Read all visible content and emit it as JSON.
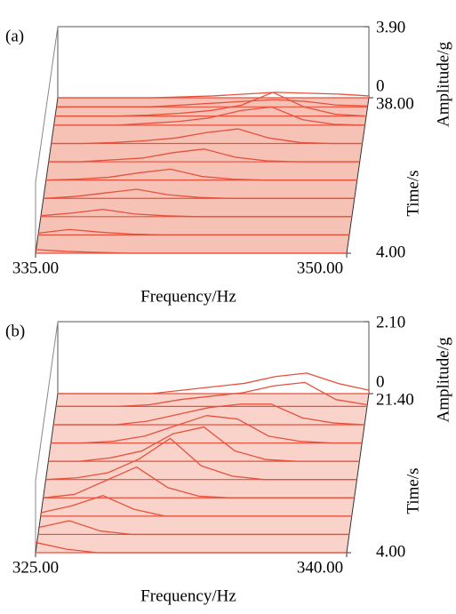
{
  "chart_data": [
    {
      "type": "waterfall",
      "panel_label": "(a)",
      "xlabel": "Frequency/Hz",
      "ylabel": "Time/s",
      "zlabel": "Amplitude/g",
      "color": "#e8503c",
      "floor_color": "#f6c2b6",
      "xlim": [
        335,
        350
      ],
      "xticks": [
        {
          "value": 335,
          "label": "335.00"
        },
        {
          "value": 350,
          "label": "350.00"
        }
      ],
      "ylim": [
        4,
        38
      ],
      "yticks": [
        {
          "value": 4,
          "label": "4.00"
        },
        {
          "value": 38,
          "label": "38.00"
        }
      ],
      "zlim": [
        0,
        3.9
      ],
      "zticks": [
        0,
        {
          "value": 3.9,
          "label": "3.90"
        }
      ],
      "x": [
        335,
        336.5,
        338,
        339.5,
        341,
        342.5,
        344,
        345.5,
        347,
        348.5,
        350
      ],
      "slices": [
        {
          "time": 38,
          "values": [
            0,
            0,
            0,
            0,
            0.05,
            0.1,
            0.2,
            0.3,
            0.25,
            0.2,
            0.1
          ]
        },
        {
          "time": 36,
          "values": [
            0,
            0,
            0,
            0,
            0.1,
            0.2,
            0.3,
            0.4,
            0.3,
            0.1,
            0.05
          ]
        },
        {
          "time": 34,
          "values": [
            0,
            0,
            0,
            0.05,
            0.15,
            0.3,
            0.6,
            1.3,
            0.5,
            0.1,
            0
          ]
        },
        {
          "time": 32,
          "values": [
            0,
            0,
            0,
            0.1,
            0.2,
            0.4,
            0.8,
            1.0,
            0.3,
            0.05,
            0
          ]
        },
        {
          "time": 28,
          "values": [
            0,
            0,
            0.05,
            0.15,
            0.3,
            0.6,
            0.8,
            0.3,
            0.05,
            0,
            0
          ]
        },
        {
          "time": 24,
          "values": [
            0,
            0,
            0.1,
            0.2,
            0.5,
            0.7,
            0.25,
            0.05,
            0,
            0,
            0
          ]
        },
        {
          "time": 20,
          "values": [
            0,
            0.05,
            0.15,
            0.4,
            0.6,
            0.2,
            0.05,
            0,
            0,
            0,
            0
          ]
        },
        {
          "time": 16,
          "values": [
            0,
            0.1,
            0.3,
            0.5,
            0.2,
            0.05,
            0,
            0,
            0,
            0,
            0
          ]
        },
        {
          "time": 12,
          "values": [
            0.05,
            0.2,
            0.4,
            0.15,
            0.05,
            0,
            0,
            0,
            0,
            0,
            0
          ]
        },
        {
          "time": 8,
          "values": [
            0.1,
            0.3,
            0.15,
            0.05,
            0,
            0,
            0,
            0,
            0,
            0,
            0
          ]
        },
        {
          "time": 4,
          "values": [
            0.2,
            0.1,
            0.05,
            0,
            0,
            0,
            0,
            0,
            0,
            0,
            0
          ]
        }
      ]
    },
    {
      "type": "waterfall",
      "panel_label": "(b)",
      "xlabel": "Frequency/Hz",
      "ylabel": "Time/s",
      "zlabel": "Amplitude/g",
      "color": "#e8503c",
      "floor_color": "#f9d3ca",
      "xlim": [
        325,
        340
      ],
      "xticks": [
        {
          "value": 325,
          "label": "325.00"
        },
        {
          "value": 340,
          "label": "340.00"
        }
      ],
      "ylim": [
        4,
        21.4
      ],
      "yticks": [
        {
          "value": 4,
          "label": "4.00"
        },
        {
          "value": 21.4,
          "label": "21.40"
        }
      ],
      "zlim": [
        0,
        2.1
      ],
      "zticks": [
        0,
        {
          "value": 2.1,
          "label": "2.10"
        }
      ],
      "x": [
        325,
        326.5,
        328,
        329.5,
        331,
        332.5,
        334,
        335.5,
        337,
        338.5,
        340
      ],
      "slices": [
        {
          "time": 21.4,
          "values": [
            0,
            0,
            0,
            0,
            0.1,
            0.2,
            0.3,
            0.5,
            0.6,
            0.3,
            0.1
          ]
        },
        {
          "time": 20,
          "values": [
            0,
            0,
            0,
            0.05,
            0.2,
            0.3,
            0.4,
            0.6,
            0.7,
            0.2,
            0.05
          ]
        },
        {
          "time": 18,
          "values": [
            0,
            0,
            0,
            0.1,
            0.3,
            0.5,
            0.6,
            0.6,
            0.2,
            0.05,
            0
          ]
        },
        {
          "time": 16,
          "values": [
            0,
            0,
            0.05,
            0.2,
            0.5,
            0.8,
            0.7,
            0.2,
            0.05,
            0,
            0
          ]
        },
        {
          "time": 14,
          "values": [
            0,
            0,
            0.1,
            0.3,
            0.8,
            1.0,
            0.3,
            0.05,
            0,
            0,
            0
          ]
        },
        {
          "time": 12,
          "values": [
            0,
            0.05,
            0.2,
            0.6,
            1.2,
            0.4,
            0.1,
            0,
            0,
            0,
            0
          ]
        },
        {
          "time": 10,
          "values": [
            0,
            0.1,
            0.5,
            0.9,
            0.3,
            0.05,
            0,
            0,
            0,
            0,
            0
          ]
        },
        {
          "time": 8,
          "values": [
            0.1,
            0.3,
            0.6,
            0.2,
            0,
            0,
            0,
            0,
            0,
            0,
            0
          ]
        },
        {
          "time": 6,
          "values": [
            0.2,
            0.4,
            0.1,
            0,
            0,
            0,
            0,
            0,
            0,
            0,
            0
          ]
        },
        {
          "time": 4,
          "values": [
            0.3,
            0.1,
            0,
            0,
            0,
            0,
            0,
            0,
            0,
            0,
            0
          ]
        }
      ]
    }
  ]
}
